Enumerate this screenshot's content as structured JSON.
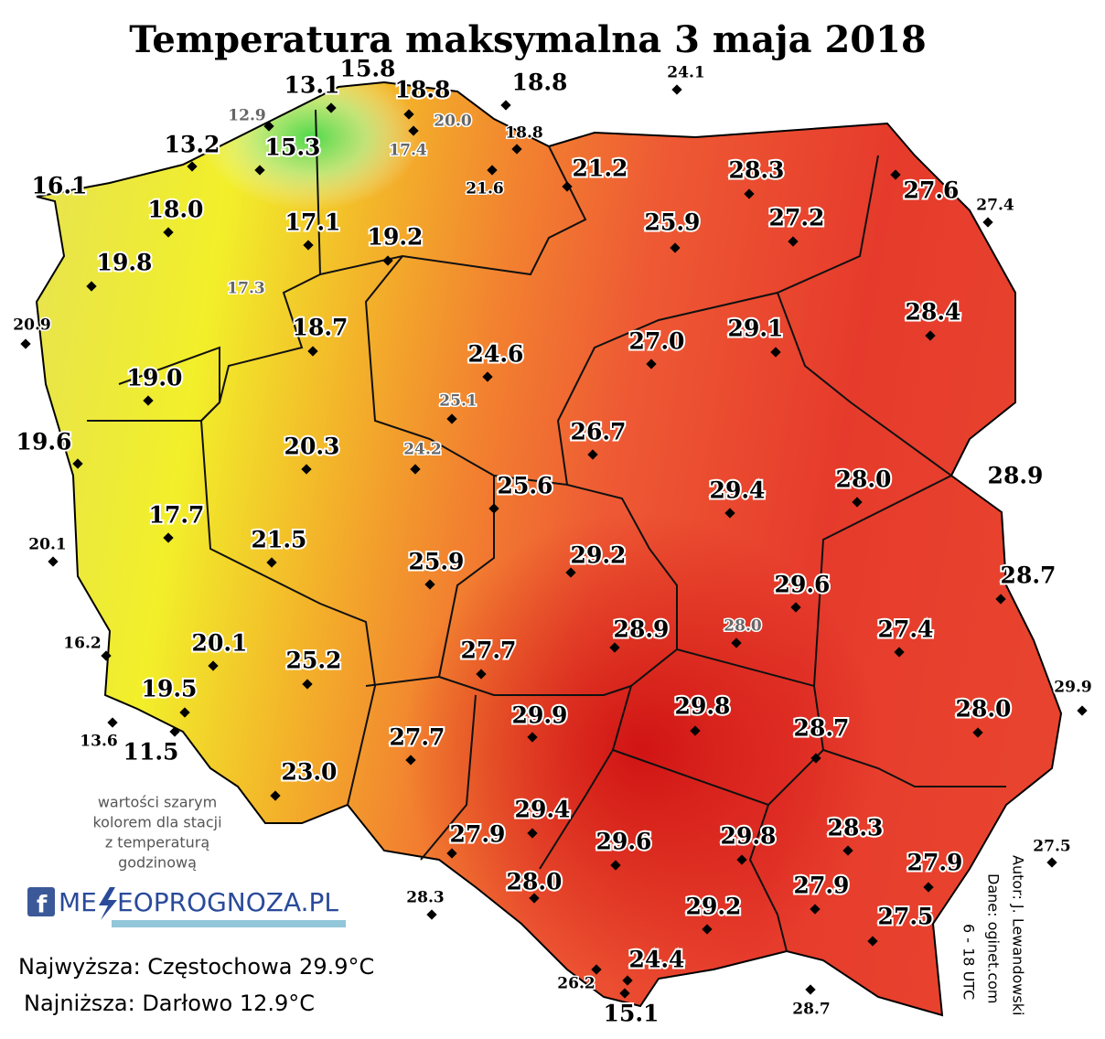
{
  "title": "Temperatura maksymalna 3 maja 2018",
  "stations": [
    "13.1",
    "15.8",
    "18.8",
    "18.8",
    "24.1",
    "12.9",
    "20.0",
    "18.8",
    "17.4",
    "13.2",
    "15.3",
    "21.6",
    "21.2",
    "28.3",
    "27.6",
    "27.4",
    "16.1",
    "18.0",
    "17.1",
    "19.2",
    "25.9",
    "27.2",
    "19.8",
    "17.3",
    "20.9",
    "18.7",
    "28.4",
    "27.0",
    "29.1",
    "24.6",
    "19.0",
    "25.1",
    "26.7",
    "19.6",
    "20.3",
    "24.2",
    "25.6",
    "29.4",
    "28.0",
    "28.9",
    "17.7",
    "20.1",
    "21.5",
    "25.9",
    "29.2",
    "29.6",
    "28.7",
    "28.9",
    "28.0",
    "27.4",
    "16.2",
    "20.1",
    "25.2",
    "27.7",
    "29.9",
    "19.5",
    "29.8",
    "28.0",
    "29.9",
    "28.7",
    "27.7",
    "13.6",
    "11.5",
    "23.0",
    "29.4",
    "28.3",
    "27.5",
    "27.9",
    "29.6",
    "29.8",
    "27.9",
    "28.0",
    "27.9",
    "28.3",
    "29.2",
    "27.5",
    "24.4",
    "26.2",
    "28.7",
    "15.1"
  ],
  "note": [
    "wartości szarym",
    "kolorem dla stacji",
    "z temperaturą",
    "godzinową"
  ],
  "logo": {
    "left": "ME",
    "right": "EOPROGNOZA.PL"
  },
  "summary": [
    "Najwyższa: Częstochowa 29.9°C",
    "Najniższa: Darłowo 12.9°C"
  ],
  "credits": [
    "Autor: J. Lewandowski",
    "Dane: oginet.com",
    "6 - 18 UTC"
  ]
}
